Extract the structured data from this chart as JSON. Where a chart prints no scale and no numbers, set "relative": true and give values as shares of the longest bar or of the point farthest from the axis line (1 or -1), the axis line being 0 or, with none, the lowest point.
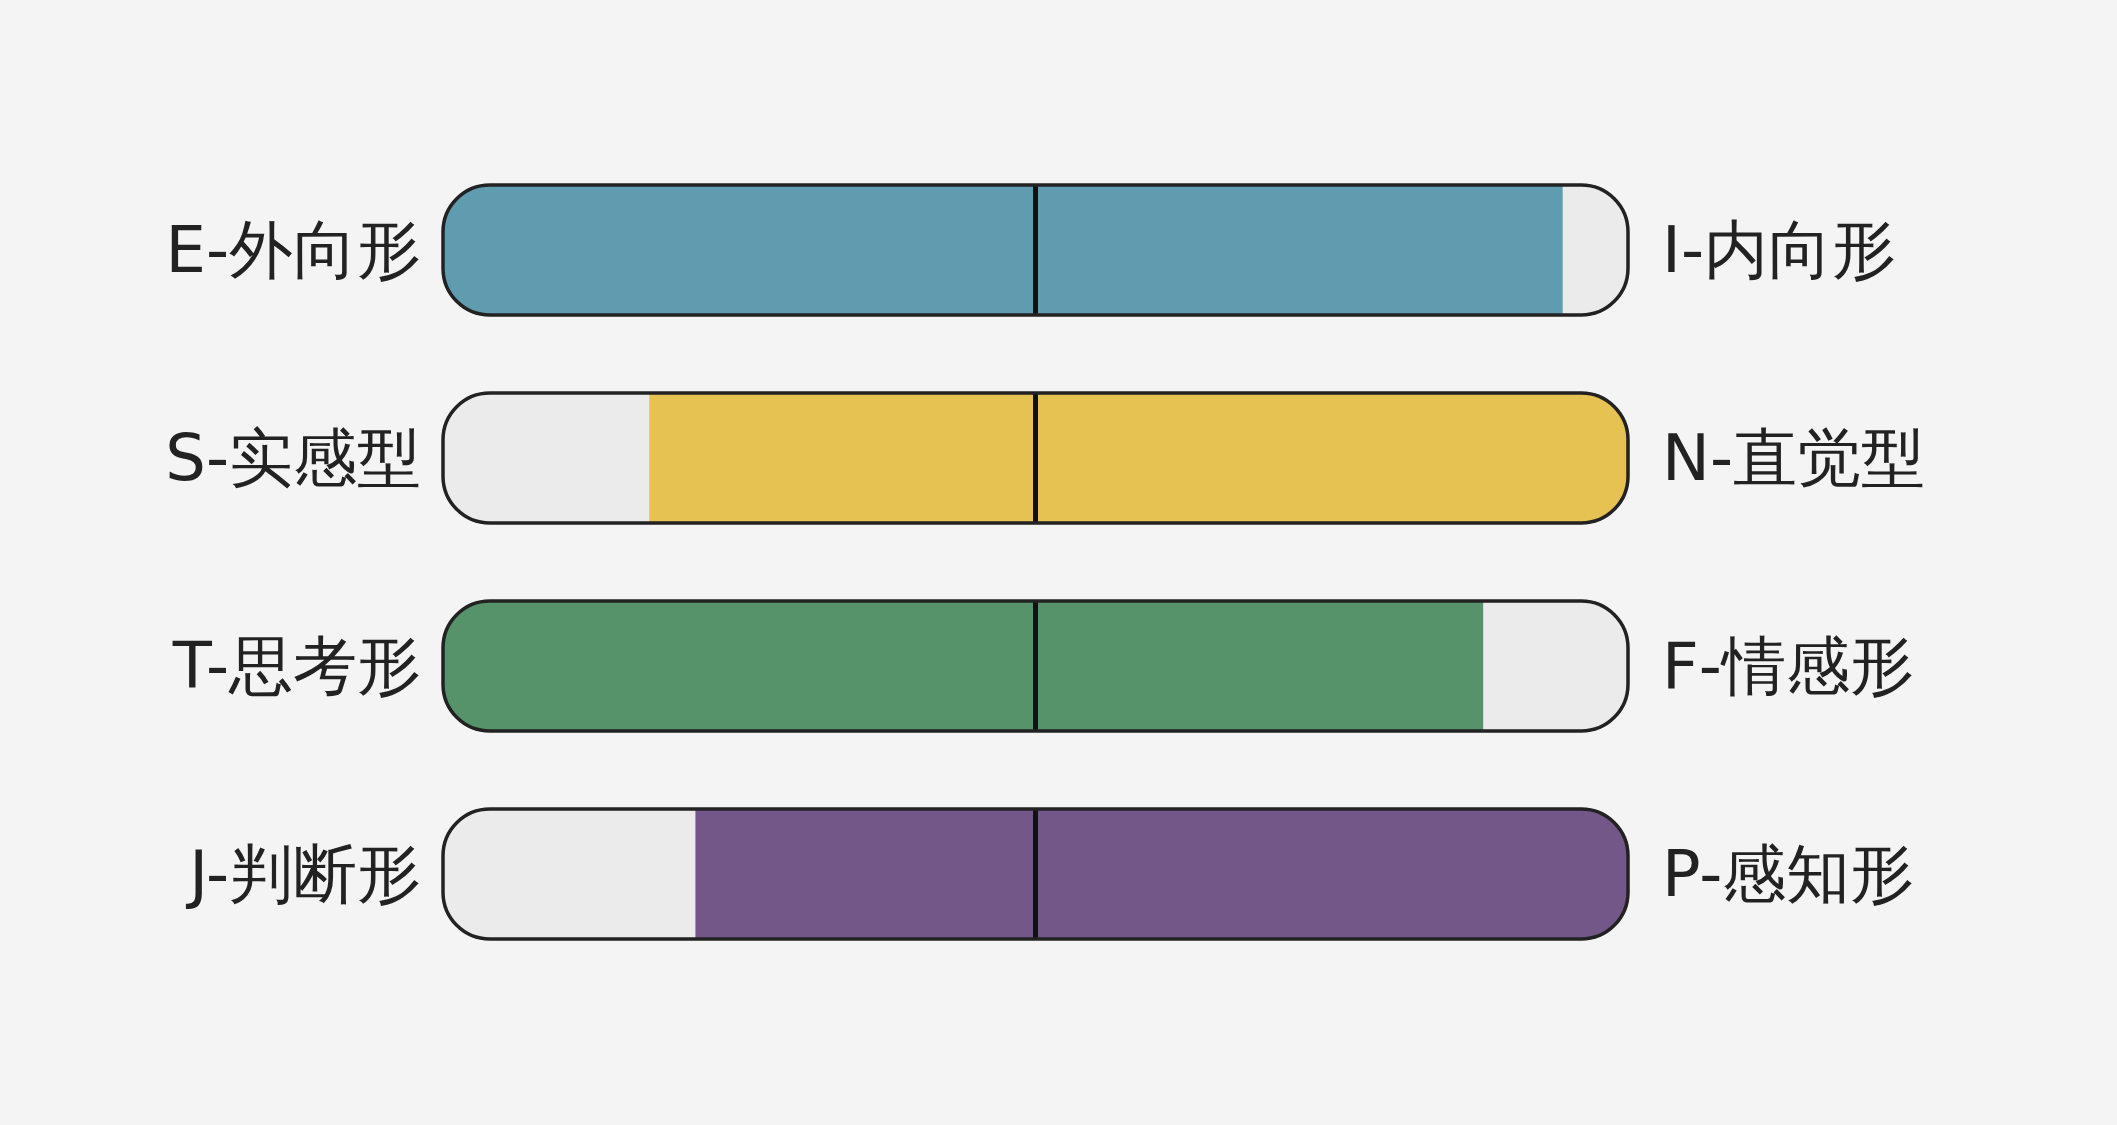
{
  "chart_data": {
    "type": "bar",
    "orientation": "horizontal",
    "stacked": true,
    "relative": true,
    "categories": [
      "E-外向形",
      "S-实感型",
      "T-思考形",
      "J-判断形"
    ],
    "series": [
      {
        "color": "#ebebeb",
        "values": [
          0,
          0.174,
          0,
          0.213
        ]
      },
      {
        "colors": [
          "#5f9caf",
          "#e5c252",
          "#56936b",
          "#735789"
        ],
        "values": [
          0.945,
          0.826,
          0.878,
          0.787
        ]
      },
      {
        "color": "#ebebeb",
        "values": [
          0.055,
          0,
          0.122,
          0
        ]
      }
    ],
    "ref_lines": [
      {
        "axis": "x",
        "value": 0.5,
        "color": "#111111"
      }
    ],
    "annotations": [
      "I-内向形",
      "N-直觉型",
      "F-情感形",
      "P-感知形"
    ]
  }
}
